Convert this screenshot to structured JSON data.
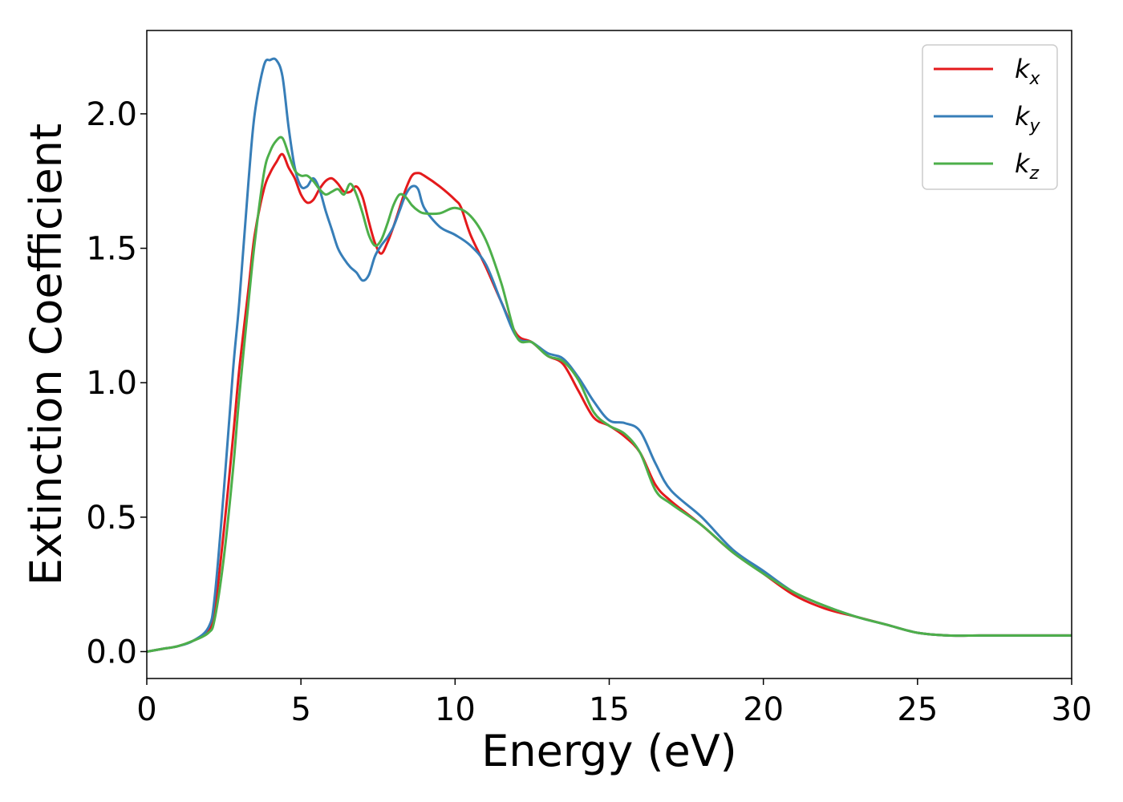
{
  "chart_data": {
    "type": "line",
    "title": "",
    "xlabel": "Energy (eV)",
    "ylabel": "Extinction Coefficient",
    "xlim": [
      0,
      30
    ],
    "ylim": [
      -0.1,
      2.31
    ],
    "xticks": [
      0,
      5,
      10,
      15,
      20,
      25,
      30
    ],
    "xtick_labels": [
      "0",
      "5",
      "10",
      "15",
      "20",
      "25",
      "30"
    ],
    "yticks": [
      0.0,
      0.5,
      1.0,
      1.5,
      2.0
    ],
    "ytick_labels": [
      "0.0",
      "0.5",
      "1.0",
      "1.5",
      "2.0"
    ],
    "grid": false,
    "legend_position": "top-right",
    "series": [
      {
        "name": "k",
        "subscript": "x",
        "color": "#e41a1c",
        "x": [
          0,
          0.5,
          1,
          1.5,
          2,
          2.2,
          2.5,
          2.8,
          3,
          3.3,
          3.5,
          3.8,
          4,
          4.2,
          4.4,
          4.6,
          4.8,
          5,
          5.2,
          5.4,
          5.6,
          5.8,
          6,
          6.2,
          6.4,
          6.6,
          6.8,
          7,
          7.2,
          7.4,
          7.6,
          7.8,
          8,
          8.2,
          8.4,
          8.6,
          8.8,
          9,
          9.5,
          10,
          10.2,
          10.5,
          11,
          11.5,
          12,
          12.5,
          13,
          13.5,
          14,
          14.5,
          15,
          15.5,
          16,
          16.5,
          17,
          18,
          19,
          20,
          21,
          22,
          23,
          24,
          25,
          26,
          27,
          28,
          29,
          30
        ],
        "values": [
          0.0,
          0.01,
          0.02,
          0.04,
          0.08,
          0.15,
          0.45,
          0.8,
          1.05,
          1.35,
          1.55,
          1.72,
          1.78,
          1.82,
          1.85,
          1.8,
          1.76,
          1.7,
          1.67,
          1.68,
          1.72,
          1.75,
          1.76,
          1.74,
          1.71,
          1.71,
          1.73,
          1.69,
          1.6,
          1.52,
          1.48,
          1.52,
          1.58,
          1.65,
          1.72,
          1.77,
          1.78,
          1.77,
          1.73,
          1.68,
          1.65,
          1.55,
          1.43,
          1.3,
          1.18,
          1.15,
          1.1,
          1.07,
          0.97,
          0.87,
          0.84,
          0.8,
          0.74,
          0.62,
          0.56,
          0.47,
          0.37,
          0.29,
          0.21,
          0.16,
          0.13,
          0.1,
          0.07,
          0.06,
          0.06,
          0.06,
          0.06,
          0.06
        ]
      },
      {
        "name": "k",
        "subscript": "y",
        "color": "#377eb8",
        "x": [
          0,
          0.5,
          1,
          1.5,
          2,
          2.2,
          2.5,
          2.8,
          3,
          3.3,
          3.5,
          3.8,
          4,
          4.2,
          4.4,
          4.6,
          4.8,
          5,
          5.2,
          5.4,
          5.6,
          5.8,
          6,
          6.2,
          6.4,
          6.6,
          6.8,
          7,
          7.2,
          7.4,
          7.6,
          7.8,
          8,
          8.2,
          8.4,
          8.6,
          8.8,
          9,
          9.5,
          10,
          10.5,
          11,
          11.5,
          12,
          12.5,
          13,
          13.5,
          14,
          14.5,
          15,
          15.5,
          16,
          16.5,
          17,
          18,
          19,
          20,
          21,
          22,
          23,
          24,
          25,
          26,
          27,
          28,
          29,
          30
        ],
        "values": [
          0.0,
          0.01,
          0.02,
          0.04,
          0.09,
          0.2,
          0.6,
          1.05,
          1.3,
          1.75,
          2.0,
          2.18,
          2.2,
          2.2,
          2.14,
          1.95,
          1.8,
          1.73,
          1.73,
          1.76,
          1.72,
          1.64,
          1.57,
          1.5,
          1.46,
          1.43,
          1.41,
          1.38,
          1.4,
          1.47,
          1.51,
          1.54,
          1.58,
          1.64,
          1.7,
          1.73,
          1.72,
          1.65,
          1.58,
          1.55,
          1.51,
          1.44,
          1.3,
          1.17,
          1.15,
          1.11,
          1.09,
          1.02,
          0.93,
          0.86,
          0.85,
          0.82,
          0.7,
          0.6,
          0.5,
          0.38,
          0.3,
          0.22,
          0.17,
          0.13,
          0.1,
          0.07,
          0.06,
          0.06,
          0.06,
          0.06,
          0.06
        ]
      },
      {
        "name": "k",
        "subscript": "z",
        "color": "#4daf4a",
        "x": [
          0,
          0.5,
          1,
          1.5,
          2,
          2.2,
          2.5,
          2.8,
          3,
          3.3,
          3.5,
          3.8,
          4,
          4.2,
          4.4,
          4.6,
          4.8,
          5,
          5.2,
          5.4,
          5.6,
          5.8,
          6,
          6.2,
          6.4,
          6.6,
          6.8,
          7,
          7.2,
          7.4,
          7.6,
          7.8,
          8,
          8.2,
          8.4,
          8.6,
          8.8,
          9,
          9.5,
          10,
          10.5,
          11,
          11.5,
          12,
          12.5,
          13,
          13.5,
          14,
          14.5,
          15,
          15.5,
          16,
          16.5,
          17,
          18,
          19,
          20,
          21,
          22,
          23,
          24,
          25,
          26,
          27,
          28,
          29,
          30
        ],
        "values": [
          0.0,
          0.01,
          0.02,
          0.04,
          0.07,
          0.12,
          0.35,
          0.68,
          0.95,
          1.3,
          1.52,
          1.78,
          1.86,
          1.9,
          1.91,
          1.85,
          1.79,
          1.77,
          1.77,
          1.75,
          1.72,
          1.7,
          1.71,
          1.72,
          1.7,
          1.74,
          1.7,
          1.63,
          1.55,
          1.51,
          1.53,
          1.59,
          1.66,
          1.7,
          1.69,
          1.66,
          1.64,
          1.63,
          1.63,
          1.65,
          1.62,
          1.53,
          1.37,
          1.17,
          1.15,
          1.1,
          1.08,
          1.01,
          0.89,
          0.84,
          0.81,
          0.74,
          0.6,
          0.55,
          0.47,
          0.37,
          0.29,
          0.22,
          0.17,
          0.13,
          0.1,
          0.07,
          0.06,
          0.06,
          0.06,
          0.06,
          0.06
        ]
      }
    ]
  }
}
